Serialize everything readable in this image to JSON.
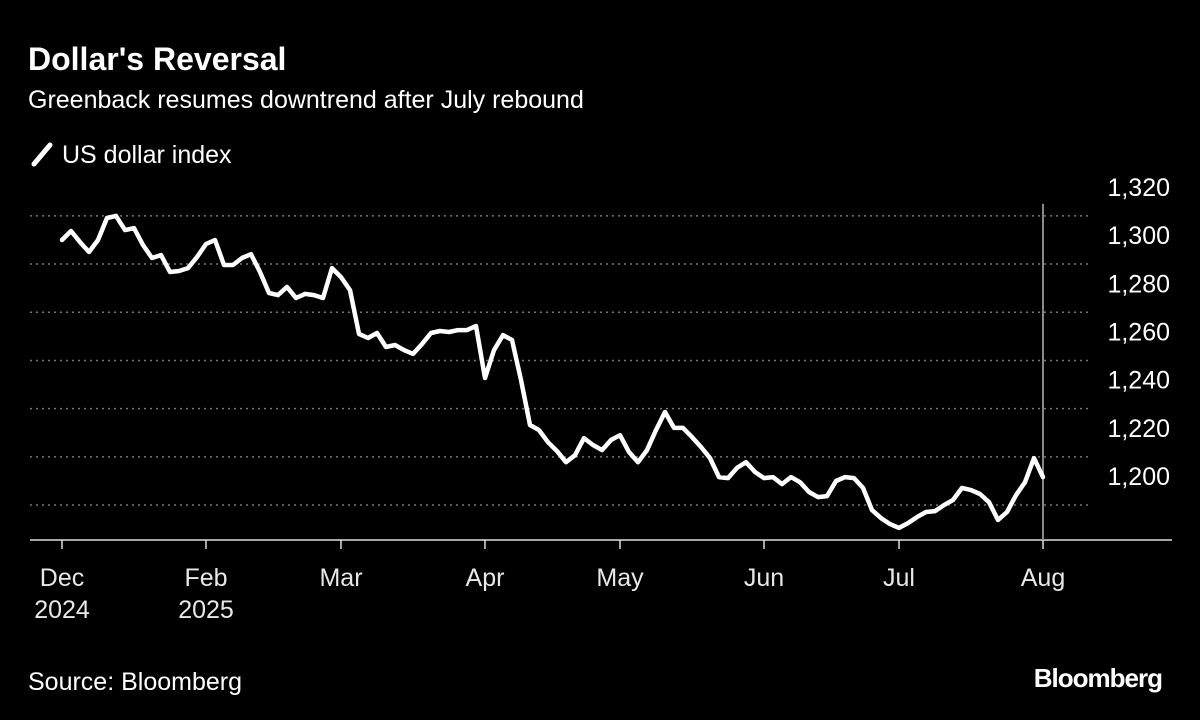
{
  "chart_data": {
    "type": "line",
    "title": "Dollar's Reversal",
    "subtitle": "Greenback resumes downtrend after July rebound",
    "source": "Source: Bloomberg",
    "brand": "Bloomberg",
    "categories": [
      "Dec\n2024",
      null,
      null,
      null,
      null,
      null,
      null,
      null,
      null,
      null,
      null,
      null,
      null,
      null,
      null,
      null,
      "Feb\n2025",
      null,
      null,
      null,
      null,
      null,
      null,
      null,
      null,
      null,
      null,
      null,
      null,
      null,
      null,
      "Mar",
      null,
      null,
      null,
      null,
      null,
      null,
      null,
      null,
      null,
      null,
      null,
      null,
      null,
      null,
      null,
      "Apr",
      null,
      null,
      null,
      null,
      null,
      null,
      null,
      null,
      null,
      null,
      null,
      null,
      null,
      null,
      "May",
      null,
      null,
      null,
      null,
      null,
      null,
      null,
      null,
      null,
      null,
      null,
      null,
      null,
      null,
      null,
      "Jun",
      null,
      null,
      null,
      null,
      null,
      null,
      null,
      null,
      null,
      null,
      null,
      null,
      null,
      null,
      "Jul",
      null,
      null,
      null,
      null,
      null,
      null,
      null,
      null,
      null,
      null,
      null,
      null,
      null,
      null,
      null,
      "Aug"
    ],
    "series": [
      {
        "name": "US dollar index",
        "color": "#ffffff",
        "values": [
          1310.0,
          1313.7,
          1309.1,
          1305.0,
          1310.0,
          1319.1,
          1320.0,
          1314.1,
          1314.9,
          1307.9,
          1302.5,
          1303.7,
          1296.7,
          1297.1,
          1298.3,
          1302.9,
          1308.3,
          1310.0,
          1299.6,
          1299.6,
          1302.5,
          1304.1,
          1296.7,
          1288.0,
          1287.1,
          1290.5,
          1285.9,
          1287.6,
          1287.1,
          1285.9,
          1298.3,
          1294.6,
          1289.2,
          1271.0,
          1269.3,
          1271.4,
          1265.6,
          1266.4,
          1264.3,
          1262.7,
          1266.8,
          1271.4,
          1272.2,
          1271.8,
          1272.6,
          1272.6,
          1274.3,
          1252.7,
          1264.3,
          1270.5,
          1268.5,
          1251.9,
          1233.2,
          1231.1,
          1226.1,
          1222.4,
          1217.8,
          1220.7,
          1227.8,
          1224.9,
          1222.8,
          1227.0,
          1229.0,
          1222.0,
          1217.8,
          1222.8,
          1231.1,
          1238.6,
          1232.0,
          1232.0,
          1228.2,
          1224.1,
          1219.5,
          1211.6,
          1211.2,
          1215.4,
          1217.8,
          1213.7,
          1211.2,
          1211.6,
          1208.7,
          1211.6,
          1209.5,
          1205.4,
          1203.3,
          1203.7,
          1210.0,
          1211.6,
          1211.2,
          1207.1,
          1197.9,
          1194.6,
          1192.1,
          1190.5,
          1192.5,
          1195.0,
          1197.1,
          1197.5,
          1200.0,
          1202.1,
          1207.1,
          1206.2,
          1204.6,
          1201.2,
          1193.8,
          1197.1,
          1204.1,
          1209.5,
          1219.5,
          1211.6
        ]
      }
    ],
    "ylim": [
      1185.5,
      1325
    ],
    "yticks": [
      {
        "value": 1200,
        "label": "1,200"
      },
      {
        "value": 1220,
        "label": "1,220"
      },
      {
        "value": 1240,
        "label": "1,240"
      },
      {
        "value": 1260,
        "label": "1,260"
      },
      {
        "value": 1280,
        "label": "1,280"
      },
      {
        "value": 1300,
        "label": "1,300"
      },
      {
        "value": 1320,
        "label": "1,320"
      }
    ],
    "grid": true
  }
}
